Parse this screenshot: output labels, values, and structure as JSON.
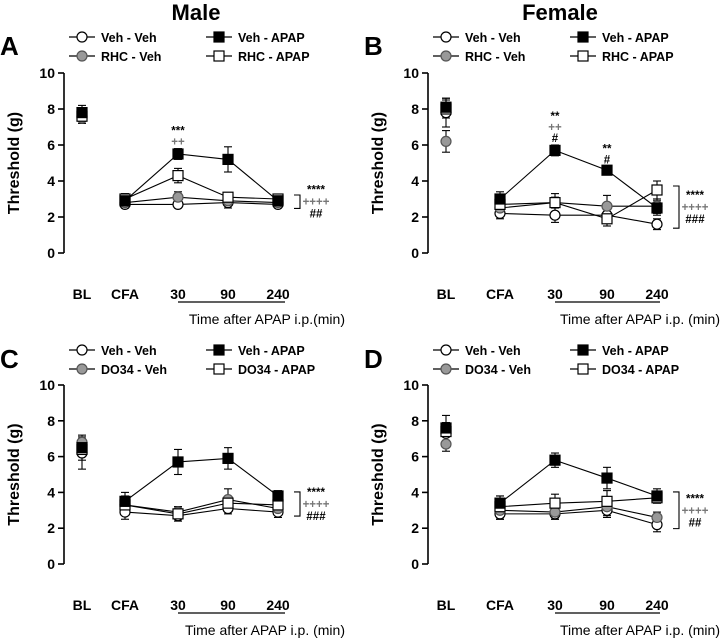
{
  "column_titles": [
    "Male",
    "Female"
  ],
  "legend_labels": {
    "veh_veh": "Veh - Veh",
    "veh_apap": "Veh - APAP"
  },
  "colors": {
    "veh_veh": "#ffffff",
    "veh_apap": "#000000",
    "treat_veh": "#999999",
    "treat_apap": "#ffffff",
    "plus_sign": "#777777",
    "line": "#000000"
  },
  "chart_data": [
    {
      "type": "line",
      "panel_letter": "A",
      "ylabel": "Threshold (g)",
      "xlabel": "Time after APAP i.p.(min)",
      "ylim": [
        0,
        10
      ],
      "yticks": [
        "0",
        "2",
        "4",
        "6",
        "8",
        "10"
      ],
      "categories": [
        "BL",
        "CFA",
        "30",
        "90",
        "240"
      ],
      "series": [
        {
          "key": "veh_veh",
          "name": "Veh - Veh",
          "values": [
            7.6,
            2.7,
            2.7,
            2.8,
            2.7
          ],
          "errors": [
            0.3,
            0.2,
            0.2,
            0.3,
            0.2
          ]
        },
        {
          "key": "treat_veh",
          "name": "RHC - Veh",
          "values": [
            7.5,
            2.8,
            3.1,
            2.9,
            2.8
          ],
          "errors": [
            0.3,
            0.3,
            0.3,
            0.2,
            0.2
          ]
        },
        {
          "key": "veh_apap",
          "name": "Veh - APAP",
          "values": [
            7.8,
            2.9,
            5.5,
            5.2,
            2.9
          ],
          "errors": [
            0.4,
            0.3,
            0.3,
            0.7,
            0.2
          ]
        },
        {
          "key": "treat_apap",
          "name": "RHC - APAP",
          "values": [
            7.6,
            3.0,
            4.3,
            3.1,
            3.0
          ],
          "errors": [
            0.3,
            0.3,
            0.4,
            0.2,
            0.2
          ]
        }
      ],
      "point_annotations": [
        {
          "x": "30",
          "lines": [
            "***",
            "++"
          ]
        }
      ],
      "stat_labels": [
        "****",
        "++++",
        "##"
      ]
    },
    {
      "type": "line",
      "panel_letter": "B",
      "ylabel": "Threshold (g)",
      "xlabel": "Time after APAP i.p. (min)",
      "ylim": [
        0,
        10
      ],
      "yticks": [
        "0",
        "2",
        "4",
        "6",
        "8",
        "10"
      ],
      "categories": [
        "BL",
        "CFA",
        "30",
        "90",
        "240"
      ],
      "series": [
        {
          "key": "veh_veh",
          "name": "Veh - Veh",
          "values": [
            7.8,
            2.2,
            2.1,
            2.1,
            1.6
          ],
          "errors": [
            0.8,
            0.3,
            0.4,
            0.3,
            0.3
          ]
        },
        {
          "key": "treat_veh",
          "name": "RHC - Veh",
          "values": [
            6.2,
            2.5,
            2.8,
            2.6,
            2.6
          ],
          "errors": [
            0.6,
            0.4,
            0.5,
            0.6,
            0.4
          ]
        },
        {
          "key": "veh_apap",
          "name": "Veh - APAP",
          "values": [
            8.1,
            3.0,
            5.7,
            4.6,
            2.5
          ],
          "errors": [
            0.5,
            0.4,
            0.3,
            0.2,
            0.4
          ]
        },
        {
          "key": "treat_apap",
          "name": "RHC - APAP",
          "values": [
            8.0,
            2.7,
            2.8,
            1.9,
            3.5
          ],
          "errors": [
            0.5,
            0.4,
            0.3,
            0.4,
            0.5
          ]
        }
      ],
      "point_annotations": [
        {
          "x": "30",
          "lines": [
            "**",
            "++",
            "#"
          ]
        },
        {
          "x": "90",
          "lines": [
            "**",
            "#"
          ]
        }
      ],
      "stat_labels": [
        "****",
        "++++",
        "###"
      ]
    },
    {
      "type": "line",
      "panel_letter": "C",
      "ylabel": "Threshold (g)",
      "xlabel": "Time after APAP i.p. (min)",
      "ylim": [
        0,
        10
      ],
      "yticks": [
        "0",
        "2",
        "4",
        "6",
        "8",
        "10"
      ],
      "categories": [
        "BL",
        "CFA",
        "30",
        "90",
        "240"
      ],
      "series": [
        {
          "key": "veh_veh",
          "name": "Veh - Veh",
          "values": [
            6.2,
            2.9,
            2.7,
            3.1,
            2.9
          ],
          "errors": [
            0.9,
            0.4,
            0.3,
            0.3,
            0.3
          ]
        },
        {
          "key": "treat_veh",
          "name": "DO34 - Veh",
          "values": [
            6.8,
            3.3,
            2.9,
            3.6,
            3.1
          ],
          "errors": [
            0.4,
            0.4,
            0.3,
            0.6,
            0.3
          ]
        },
        {
          "key": "veh_apap",
          "name": "Veh - APAP",
          "values": [
            6.5,
            3.5,
            5.7,
            5.9,
            3.8
          ],
          "errors": [
            0.4,
            0.5,
            0.7,
            0.6,
            0.3
          ]
        },
        {
          "key": "treat_apap",
          "name": "DO34 - APAP",
          "values": [
            6.4,
            3.3,
            2.8,
            3.4,
            3.3
          ],
          "errors": [
            0.6,
            0.5,
            0.4,
            0.3,
            0.3
          ]
        }
      ],
      "point_annotations": [],
      "stat_labels": [
        "****",
        "++++",
        "###"
      ]
    },
    {
      "type": "line",
      "panel_letter": "D",
      "ylabel": "Threshold (g)",
      "xlabel": "Time after APAP i.p. (min)",
      "ylim": [
        0,
        10
      ],
      "yticks": [
        "0",
        "2",
        "4",
        "6",
        "8",
        "10"
      ],
      "categories": [
        "BL",
        "CFA",
        "30",
        "90",
        "240"
      ],
      "series": [
        {
          "key": "veh_veh",
          "name": "Veh - Veh",
          "values": [
            7.3,
            2.8,
            2.8,
            3.0,
            2.2
          ],
          "errors": [
            0.6,
            0.3,
            0.3,
            0.4,
            0.4
          ]
        },
        {
          "key": "treat_veh",
          "name": "DO34 - Veh",
          "values": [
            6.7,
            3.0,
            2.9,
            3.2,
            2.6
          ],
          "errors": [
            0.4,
            0.5,
            0.4,
            0.5,
            0.3
          ]
        },
        {
          "key": "veh_apap",
          "name": "Veh - APAP",
          "values": [
            7.6,
            3.4,
            5.8,
            4.8,
            3.8
          ],
          "errors": [
            0.7,
            0.4,
            0.4,
            0.6,
            0.4
          ]
        },
        {
          "key": "treat_apap",
          "name": "DO34 - APAP",
          "values": [
            7.4,
            3.2,
            3.4,
            3.5,
            3.7
          ],
          "errors": [
            0.5,
            0.6,
            0.5,
            0.6,
            0.3
          ]
        }
      ],
      "point_annotations": [],
      "stat_labels": [
        "****",
        "++++",
        "##"
      ]
    }
  ]
}
